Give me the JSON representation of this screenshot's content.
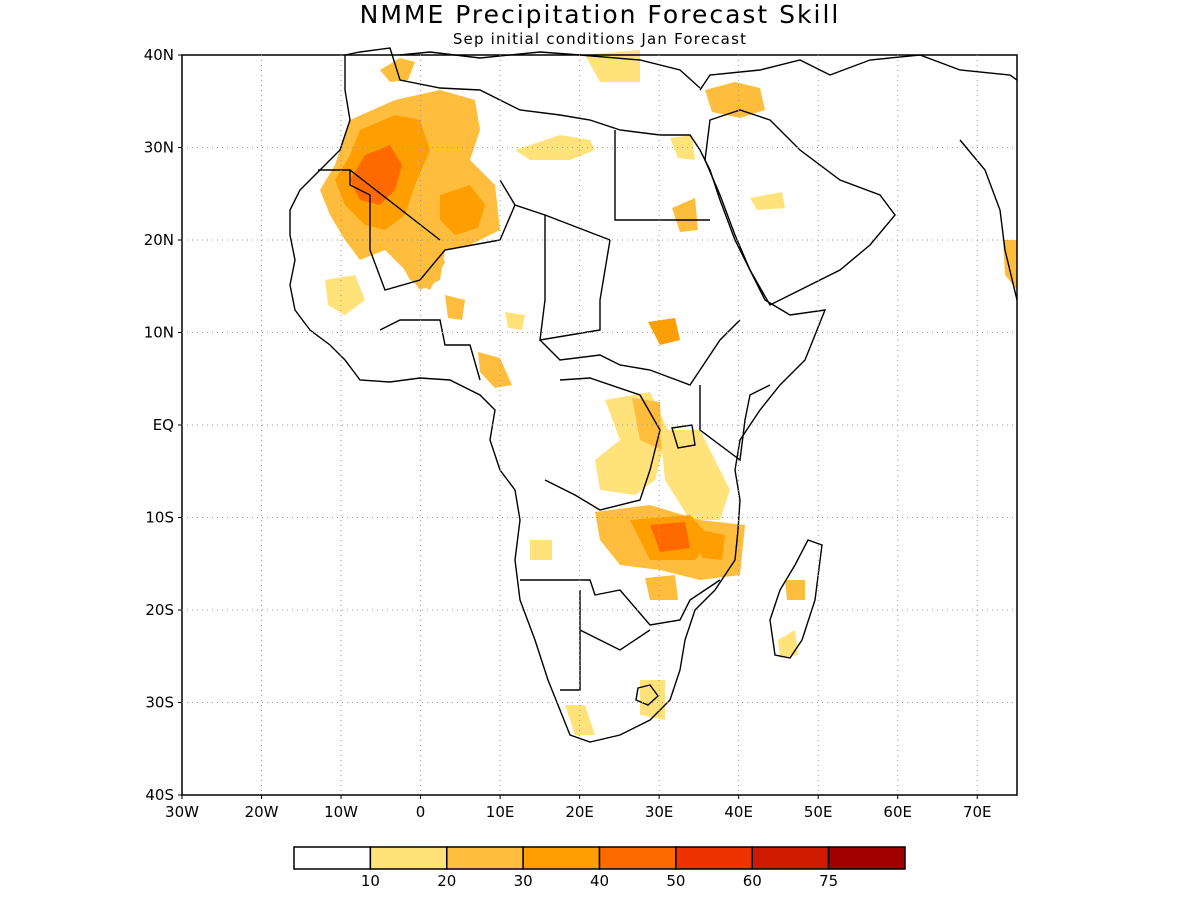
{
  "title": "NMME Precipitation Forecast Skill",
  "subtitle": "Sep initial conditions  Jan Forecast",
  "map": {
    "lat_range": [
      -40,
      40
    ],
    "lon_range": [
      -30,
      75
    ],
    "grid": true,
    "lat_ticks": [
      "40N",
      "30N",
      "20N",
      "10N",
      "EQ",
      "10S",
      "20S",
      "30S",
      "40S"
    ],
    "lon_ticks": [
      "30W",
      "20W",
      "10W",
      "0",
      "10E",
      "20E",
      "30E",
      "40E",
      "50E",
      "60E",
      "70E"
    ]
  },
  "legend": {
    "labels": [
      "10",
      "20",
      "30",
      "40",
      "50",
      "60",
      "75"
    ],
    "colors": [
      "#ffffff",
      "#ffe27a",
      "#ffbd3d",
      "#ff9e00",
      "#ff6a00",
      "#ee3300",
      "#d01a00",
      "#a30000"
    ]
  }
}
